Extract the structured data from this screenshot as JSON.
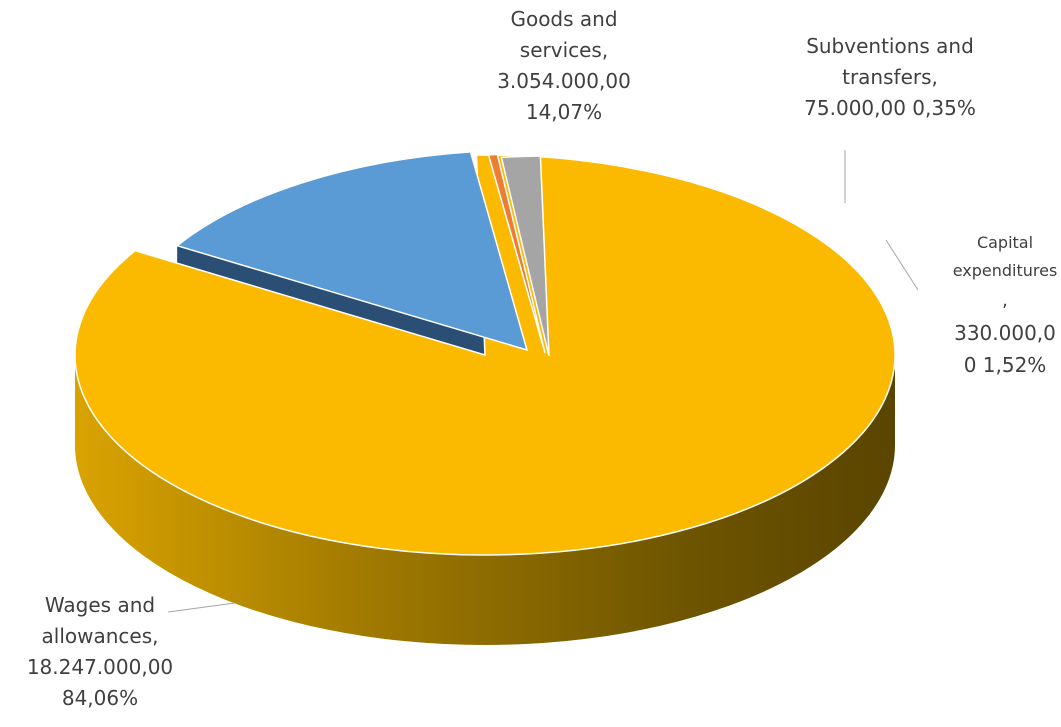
{
  "chart_data": {
    "type": "pie",
    "style": "3d-exploded",
    "slices": [
      {
        "name": "Wages and allowances",
        "value": 18247000,
        "percent": 84.06,
        "color": "#FBBA00",
        "label_lines": [
          "Wages and",
          "allowances,",
          "18.247.000,00",
          "84,06%"
        ]
      },
      {
        "name": "Goods and services",
        "value": 3054000,
        "percent": 14.07,
        "color": "#5B9BD5",
        "label_lines": [
          "Goods and",
          "services,",
          "3.054.000,00",
          "14,07%"
        ]
      },
      {
        "name": "Subventions and transfers",
        "value": 75000,
        "percent": 0.35,
        "color": "#ED7D31",
        "label_lines": [
          "Subventions and",
          "transfers,",
          "75.000,00 0,35%"
        ]
      },
      {
        "name": "Capital expenditures",
        "value": 330000,
        "percent": 1.52,
        "color": "#A5A5A5",
        "label_lines": [
          "Capital",
          "expenditures",
          ",",
          "330.000,0",
          "0 1,52%"
        ]
      }
    ],
    "legend": "none"
  }
}
